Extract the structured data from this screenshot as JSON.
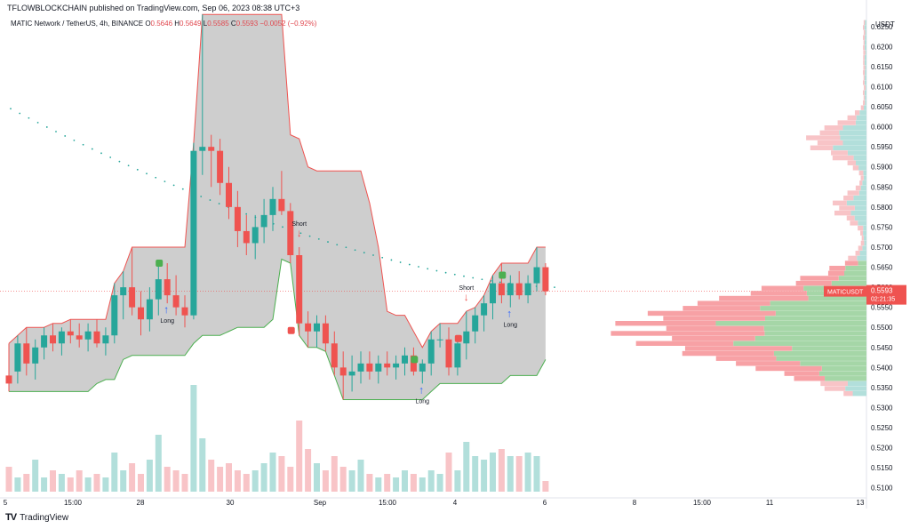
{
  "header": {
    "publisher": "TFLOWBLOCKCHAIN published on TradingView.com, Sep 06, 2023 08:38 UTC+3"
  },
  "legend": {
    "symbol": "MATIC Network / TetherUS, 4h, BINANCE",
    "open_label": "O",
    "open": "0.5646",
    "high_label": "H",
    "high": "0.5649",
    "low_label": "L",
    "low": "0.5585",
    "close_label": "C",
    "close": "0.5593",
    "change": "−0.0052 (−0.92%)"
  },
  "price_tag": {
    "symbol": "MATICUSDT",
    "price": "0.5593",
    "countdown": "02:21:35"
  },
  "footer": {
    "brand": "TradingView"
  },
  "colors": {
    "up": "#26a69a",
    "down": "#ef5350",
    "band": "#c9c9c9",
    "upper_line": "#ef5350",
    "lower_line": "#4caf50",
    "vp_up": "#a5d6a7",
    "vp_down": "#f7a1a5",
    "vp_value_up": "#b2dfdb",
    "vp_value_down": "#f8c4c7"
  },
  "chart_data": {
    "type": "candlestick",
    "currency": "USDT",
    "y_axis_labels": [
      "0.6250",
      "0.6200",
      "0.6150",
      "0.6100",
      "0.6050",
      "0.6000",
      "0.5950",
      "0.5900",
      "0.5850",
      "0.5800",
      "0.5750",
      "0.5700",
      "0.5650",
      "0.5600",
      "0.5550",
      "0.5500",
      "0.5450",
      "0.5400",
      "0.5350",
      "0.5300",
      "0.5250",
      "0.5200",
      "0.5150",
      "0.5100"
    ],
    "ylim": [
      0.5075,
      0.6285
    ],
    "x_axis_labels": [
      "5",
      "15:00",
      "28",
      "30",
      "Sep",
      "15:00",
      "4",
      "6",
      "8",
      "15:00",
      "11",
      "13"
    ],
    "candles": [
      {
        "o": 0.538,
        "h": 0.546,
        "l": 0.534,
        "c": 0.536
      },
      {
        "o": 0.539,
        "h": 0.548,
        "l": 0.536,
        "c": 0.546
      },
      {
        "o": 0.546,
        "h": 0.55,
        "l": 0.538,
        "c": 0.541
      },
      {
        "o": 0.541,
        "h": 0.547,
        "l": 0.537,
        "c": 0.545
      },
      {
        "o": 0.545,
        "h": 0.55,
        "l": 0.542,
        "c": 0.548
      },
      {
        "o": 0.548,
        "h": 0.551,
        "l": 0.544,
        "c": 0.546
      },
      {
        "o": 0.546,
        "h": 0.55,
        "l": 0.543,
        "c": 0.549
      },
      {
        "o": 0.549,
        "h": 0.552,
        "l": 0.546,
        "c": 0.548
      },
      {
        "o": 0.548,
        "h": 0.551,
        "l": 0.545,
        "c": 0.547
      },
      {
        "o": 0.547,
        "h": 0.551,
        "l": 0.544,
        "c": 0.549
      },
      {
        "o": 0.549,
        "h": 0.552,
        "l": 0.545,
        "c": 0.546
      },
      {
        "o": 0.546,
        "h": 0.55,
        "l": 0.543,
        "c": 0.548
      },
      {
        "o": 0.548,
        "h": 0.561,
        "l": 0.546,
        "c": 0.558
      },
      {
        "o": 0.558,
        "h": 0.564,
        "l": 0.552,
        "c": 0.56
      },
      {
        "o": 0.56,
        "h": 0.57,
        "l": 0.553,
        "c": 0.555
      },
      {
        "o": 0.555,
        "h": 0.559,
        "l": 0.548,
        "c": 0.552
      },
      {
        "o": 0.552,
        "h": 0.56,
        "l": 0.549,
        "c": 0.557
      },
      {
        "o": 0.557,
        "h": 0.566,
        "l": 0.553,
        "c": 0.562
      },
      {
        "o": 0.562,
        "h": 0.566,
        "l": 0.556,
        "c": 0.558
      },
      {
        "o": 0.558,
        "h": 0.563,
        "l": 0.553,
        "c": 0.555
      },
      {
        "o": 0.555,
        "h": 0.558,
        "l": 0.55,
        "c": 0.553
      },
      {
        "o": 0.553,
        "h": 0.596,
        "l": 0.552,
        "c": 0.594
      },
      {
        "o": 0.594,
        "h": 0.628,
        "l": 0.588,
        "c": 0.595
      },
      {
        "o": 0.595,
        "h": 0.598,
        "l": 0.585,
        "c": 0.594
      },
      {
        "o": 0.594,
        "h": 0.597,
        "l": 0.583,
        "c": 0.586
      },
      {
        "o": 0.586,
        "h": 0.59,
        "l": 0.577,
        "c": 0.58
      },
      {
        "o": 0.58,
        "h": 0.584,
        "l": 0.57,
        "c": 0.574
      },
      {
        "o": 0.574,
        "h": 0.578,
        "l": 0.568,
        "c": 0.571
      },
      {
        "o": 0.571,
        "h": 0.578,
        "l": 0.567,
        "c": 0.575
      },
      {
        "o": 0.575,
        "h": 0.582,
        "l": 0.571,
        "c": 0.578
      },
      {
        "o": 0.578,
        "h": 0.585,
        "l": 0.574,
        "c": 0.582
      },
      {
        "o": 0.582,
        "h": 0.589,
        "l": 0.578,
        "c": 0.579
      },
      {
        "o": 0.579,
        "h": 0.581,
        "l": 0.566,
        "c": 0.568
      },
      {
        "o": 0.568,
        "h": 0.57,
        "l": 0.548,
        "c": 0.551
      },
      {
        "o": 0.551,
        "h": 0.554,
        "l": 0.545,
        "c": 0.549
      },
      {
        "o": 0.549,
        "h": 0.553,
        "l": 0.545,
        "c": 0.551
      },
      {
        "o": 0.551,
        "h": 0.553,
        "l": 0.544,
        "c": 0.546
      },
      {
        "o": 0.546,
        "h": 0.549,
        "l": 0.538,
        "c": 0.54
      },
      {
        "o": 0.54,
        "h": 0.544,
        "l": 0.532,
        "c": 0.538
      },
      {
        "o": 0.538,
        "h": 0.543,
        "l": 0.534,
        "c": 0.539
      },
      {
        "o": 0.539,
        "h": 0.544,
        "l": 0.536,
        "c": 0.541
      },
      {
        "o": 0.541,
        "h": 0.544,
        "l": 0.537,
        "c": 0.539
      },
      {
        "o": 0.539,
        "h": 0.543,
        "l": 0.536,
        "c": 0.541
      },
      {
        "o": 0.541,
        "h": 0.544,
        "l": 0.538,
        "c": 0.54
      },
      {
        "o": 0.54,
        "h": 0.543,
        "l": 0.537,
        "c": 0.541
      },
      {
        "o": 0.541,
        "h": 0.545,
        "l": 0.538,
        "c": 0.543
      },
      {
        "o": 0.543,
        "h": 0.545,
        "l": 0.538,
        "c": 0.539
      },
      {
        "o": 0.539,
        "h": 0.542,
        "l": 0.536,
        "c": 0.541
      },
      {
        "o": 0.541,
        "h": 0.549,
        "l": 0.538,
        "c": 0.547
      },
      {
        "o": 0.547,
        "h": 0.551,
        "l": 0.545,
        "c": 0.547
      },
      {
        "o": 0.547,
        "h": 0.55,
        "l": 0.538,
        "c": 0.54
      },
      {
        "o": 0.54,
        "h": 0.548,
        "l": 0.538,
        "c": 0.546
      },
      {
        "o": 0.546,
        "h": 0.554,
        "l": 0.542,
        "c": 0.549
      },
      {
        "o": 0.549,
        "h": 0.555,
        "l": 0.546,
        "c": 0.553
      },
      {
        "o": 0.553,
        "h": 0.558,
        "l": 0.549,
        "c": 0.556
      },
      {
        "o": 0.556,
        "h": 0.563,
        "l": 0.552,
        "c": 0.561
      },
      {
        "o": 0.561,
        "h": 0.566,
        "l": 0.556,
        "c": 0.558
      },
      {
        "o": 0.558,
        "h": 0.563,
        "l": 0.555,
        "c": 0.561
      },
      {
        "o": 0.561,
        "h": 0.564,
        "l": 0.557,
        "c": 0.558
      },
      {
        "o": 0.558,
        "h": 0.563,
        "l": 0.556,
        "c": 0.561
      },
      {
        "o": 0.561,
        "h": 0.57,
        "l": 0.559,
        "c": 0.565
      },
      {
        "o": 0.565,
        "h": 0.566,
        "l": 0.558,
        "c": 0.559
      }
    ],
    "volume": [
      0.35,
      0.2,
      0.25,
      0.45,
      0.2,
      0.3,
      0.25,
      0.2,
      0.3,
      0.2,
      0.25,
      0.2,
      0.55,
      0.3,
      0.4,
      0.25,
      0.45,
      0.8,
      0.35,
      0.3,
      0.25,
      1.5,
      0.75,
      0.45,
      0.35,
      0.4,
      0.3,
      0.25,
      0.3,
      0.4,
      0.55,
      0.5,
      0.35,
      1.0,
      0.6,
      0.4,
      0.3,
      0.5,
      0.35,
      0.3,
      0.45,
      0.25,
      0.2,
      0.25,
      0.2,
      0.3,
      0.25,
      0.2,
      0.3,
      0.25,
      0.55,
      0.3,
      0.7,
      0.5,
      0.45,
      0.55,
      0.6,
      0.5,
      0.5,
      0.55,
      0.5,
      0.15
    ],
    "signals": [
      {
        "type": "Long",
        "index": 18
      },
      {
        "type": "Short",
        "index": 33
      },
      {
        "type": "Long",
        "index": 47
      },
      {
        "type": "Short",
        "index": 52
      },
      {
        "type": "Long",
        "index": 57
      }
    ],
    "labels": {
      "long": "Long",
      "short": "Short"
    }
  }
}
